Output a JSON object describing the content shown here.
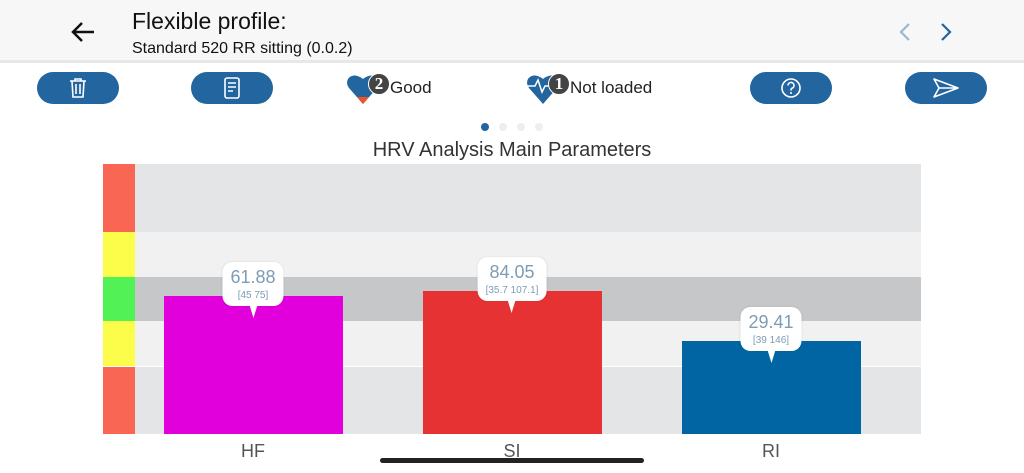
{
  "header": {
    "title": "Flexible profile:",
    "subtitle": "Standard 520 RR sitting (0.0.2)"
  },
  "toolbar": {
    "buttons": [
      {
        "icon": "trash-icon"
      },
      {
        "icon": "document-icon"
      },
      {
        "icon": "help-icon"
      },
      {
        "icon": "send-icon"
      }
    ],
    "status": [
      {
        "badge": "2",
        "label": "Good",
        "icon": "heart-icon"
      },
      {
        "badge": "1",
        "label": "Not loaded",
        "icon": "heart-pulse-icon"
      }
    ]
  },
  "pager": {
    "count": 4,
    "active": 0
  },
  "chart_data": {
    "type": "bar",
    "title": "HRV Analysis Main Parameters",
    "categories": [
      "HF",
      "SI",
      "RI"
    ],
    "values": [
      61.88,
      84.05,
      29.41
    ],
    "ranges": [
      "[45 75]",
      "[35.7 107.1]",
      "[39 146]"
    ],
    "normalized_levels": [
      0.51,
      0.53,
      0.345
    ],
    "colors": [
      "#e100dc",
      "#e63232",
      "#0065a2"
    ],
    "zones": [
      {
        "color": "#f96654",
        "band": "#e4e5e7",
        "from": 0.75,
        "to": 1.0
      },
      {
        "color": "#fcfc4a",
        "band": "#f1f1f1",
        "from": 0.58,
        "to": 0.75
      },
      {
        "color": "#52f155",
        "band": "#c6c7c9",
        "from": 0.42,
        "to": 0.58
      },
      {
        "color": "#fcfc4a",
        "band": "#f1f1f1",
        "from": 0.25,
        "to": 0.42
      },
      {
        "color": "#f96654",
        "band": "#e4e5e7",
        "from": 0.0,
        "to": 0.25
      }
    ]
  }
}
